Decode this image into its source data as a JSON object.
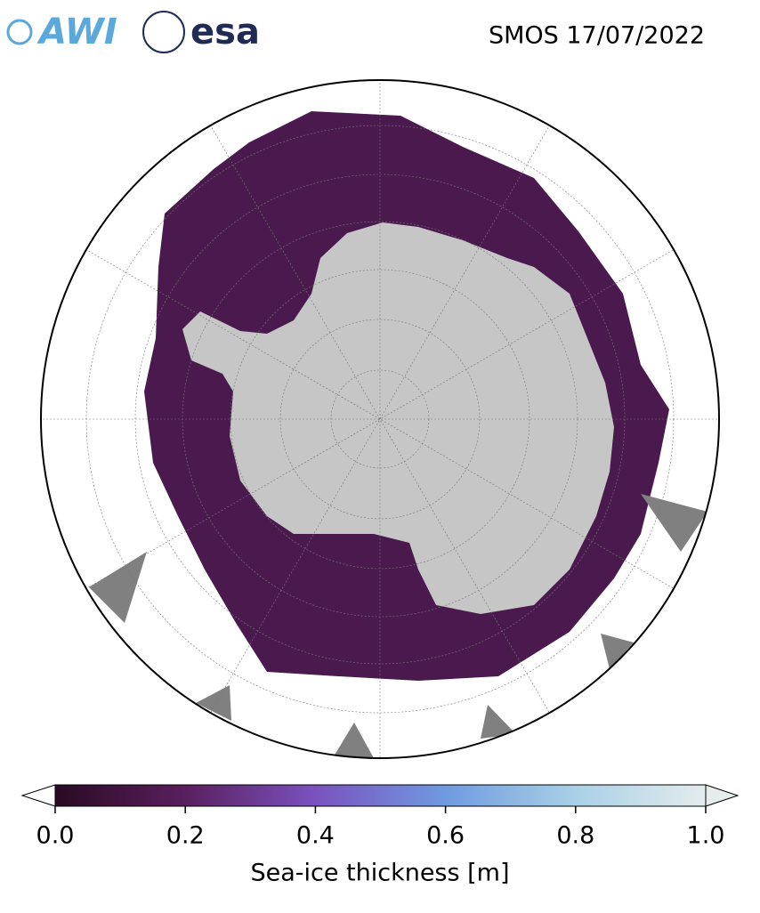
{
  "header": {
    "title": "SMOS 17/07/2022",
    "logos": [
      "AWI",
      "esa"
    ]
  },
  "colorbar": {
    "label": "Sea-ice thickness [m]",
    "lim": [
      0,
      1
    ],
    "ticks": [
      {
        "value": 0,
        "label": "0.0"
      },
      0.2,
      0.4,
      0.6,
      0.8,
      {
        "value": 1,
        "label": "1.0"
      }
    ],
    "colors": [
      "#2a0a24",
      "#5a1f5e",
      "#7a52c0",
      "#6f9ae0",
      "#a9d0e6",
      "#e4ecec"
    ]
  }
}
